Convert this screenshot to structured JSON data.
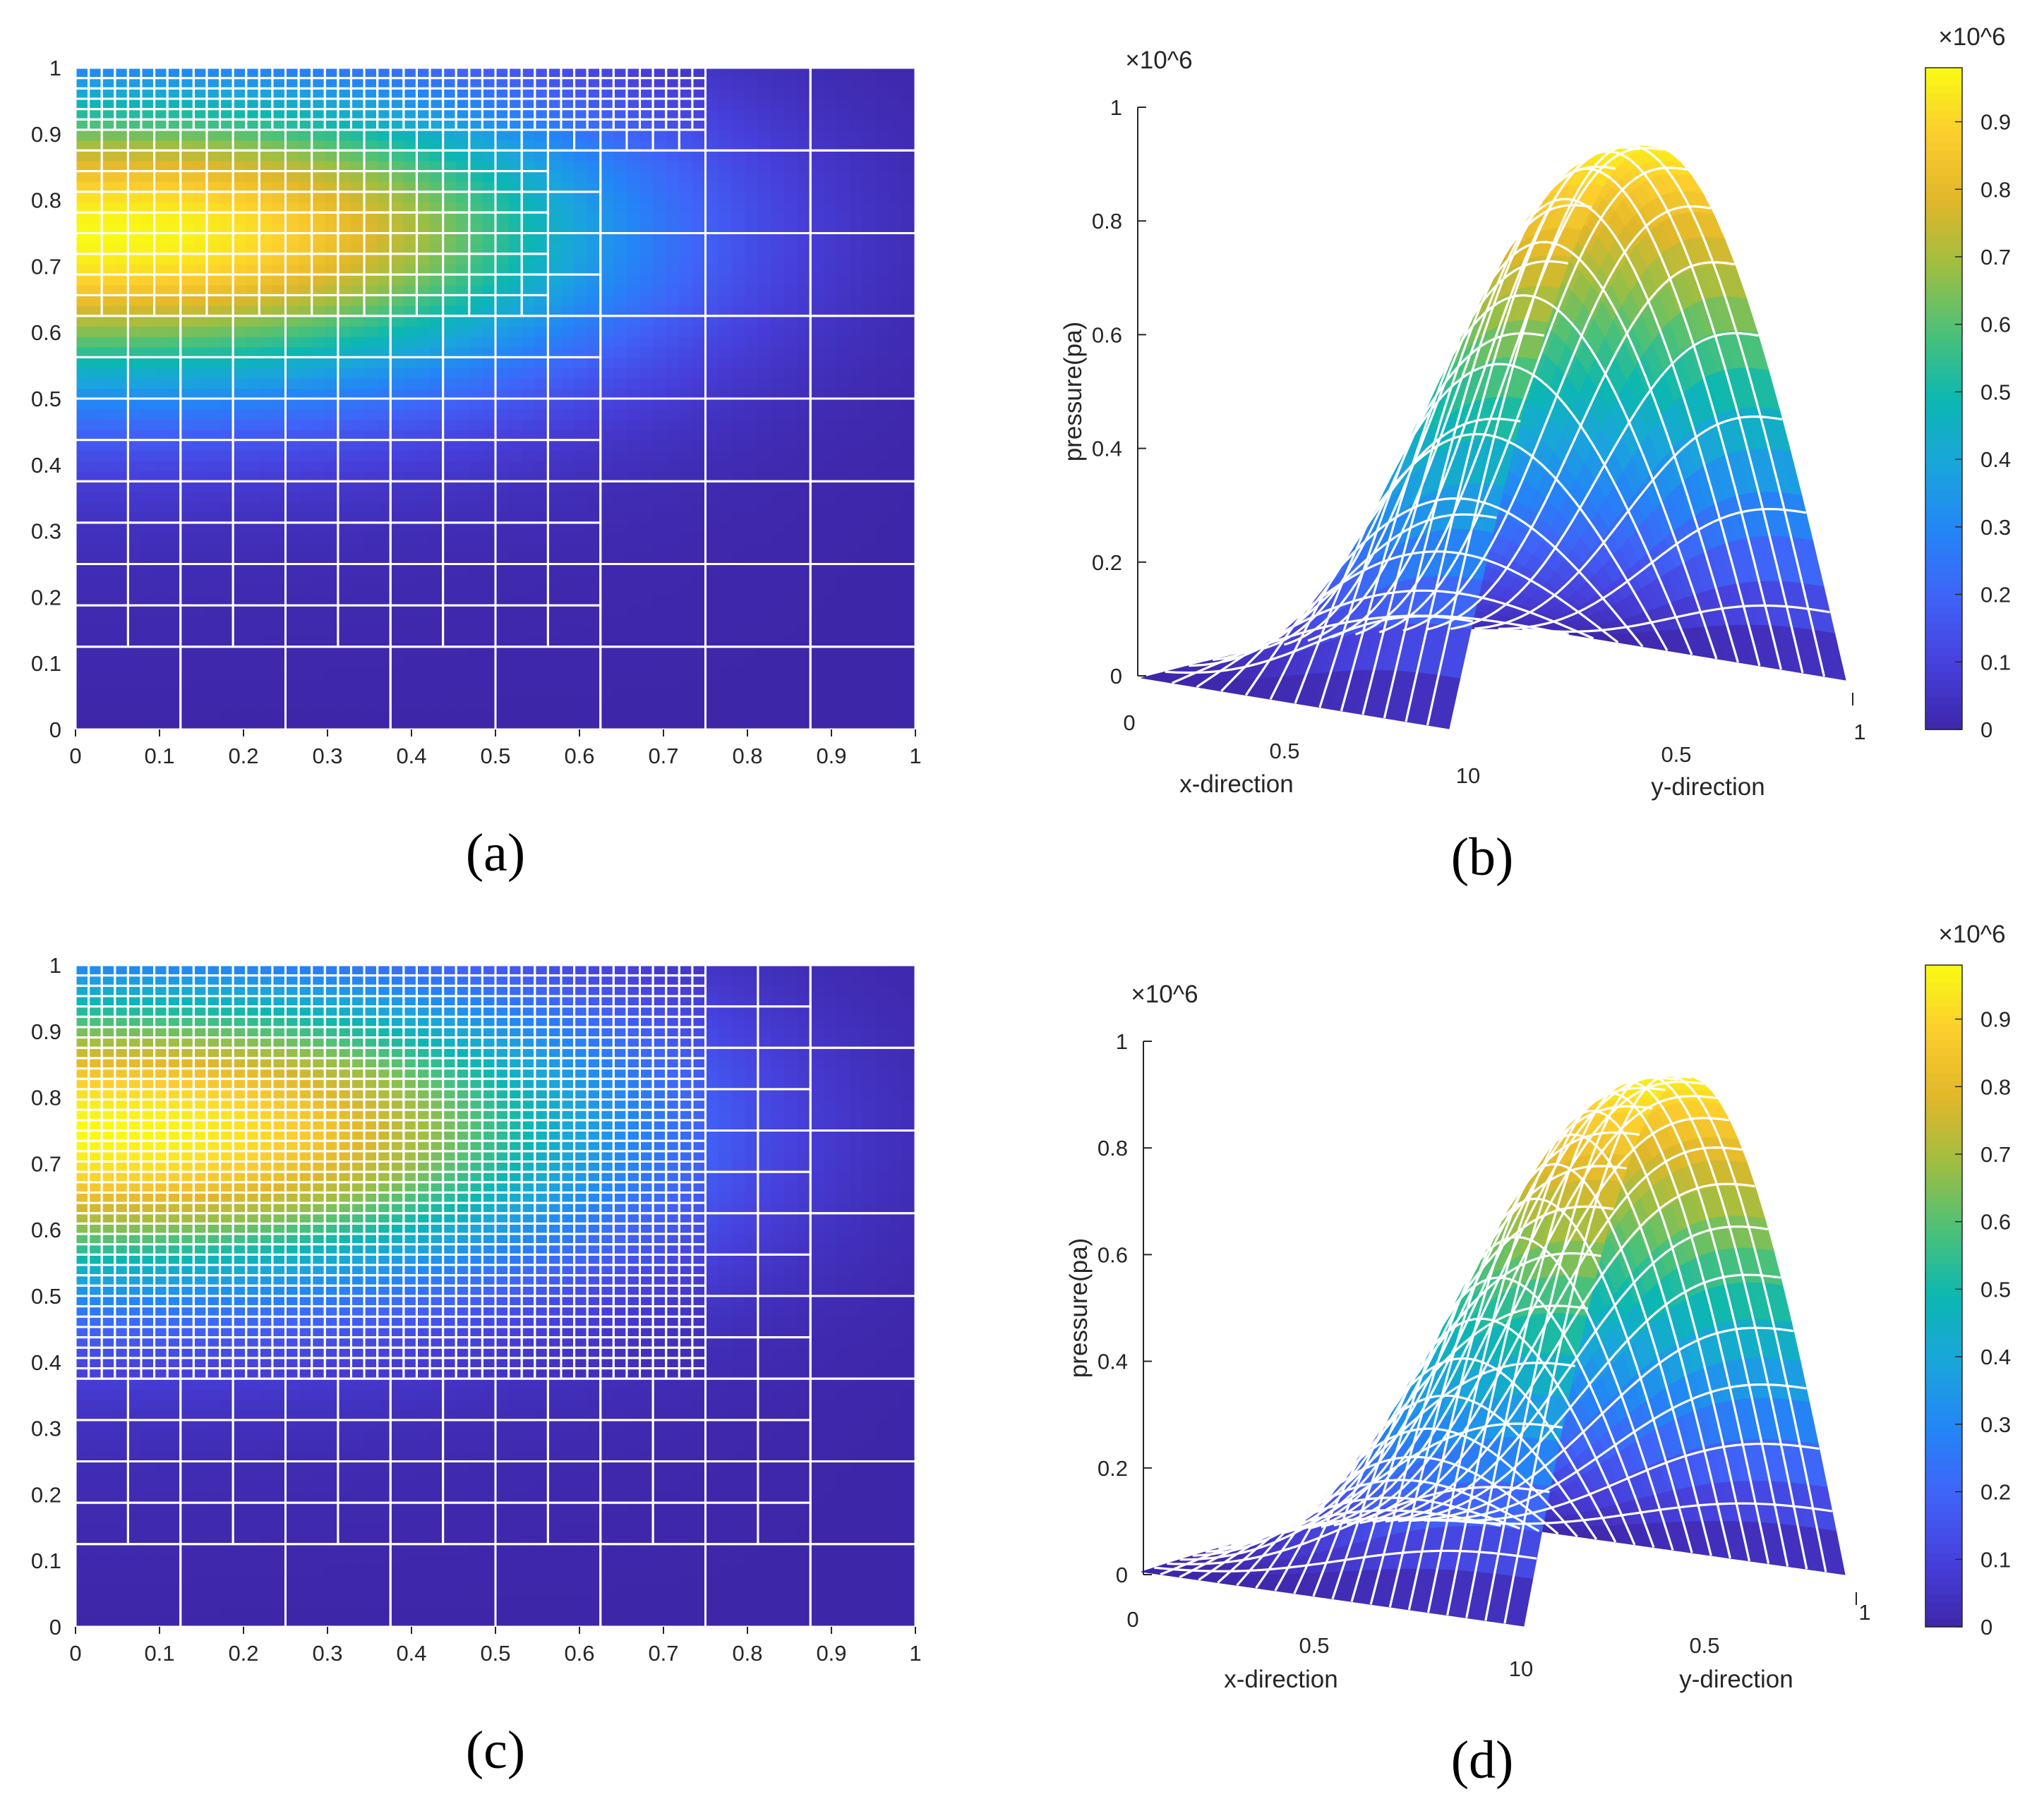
{
  "colors": {
    "background": "#ffffff",
    "mesh": "#ffffff",
    "axis": "#262626"
  },
  "colormap": "parula",
  "chart_data": [
    {
      "id": "a",
      "caption": "(a)",
      "type": "heatmap",
      "xlim": [
        0,
        1
      ],
      "ylim": [
        0,
        1
      ],
      "xticks": [
        "0",
        "0.1",
        "0.2",
        "0.3",
        "0.4",
        "0.5",
        "0.6",
        "0.7",
        "0.8",
        "0.9",
        "1"
      ],
      "yticks": [
        "0",
        "0.1",
        "0.2",
        "0.3",
        "0.4",
        "0.5",
        "0.6",
        "0.7",
        "0.8",
        "0.9",
        "1"
      ],
      "field": "pressure",
      "mesh_refinement": "quadtree, finest near top boundary and left region",
      "peak_value": 0.97
    },
    {
      "id": "b",
      "caption": "(b)",
      "type": "surface",
      "zlabel": "pressure(pa)",
      "xlabel": "x-direction",
      "ylabel": "y-direction",
      "z_multiplier": "×10^6",
      "zticks": [
        "0",
        "0.2",
        "0.4",
        "0.6",
        "0.8",
        "1"
      ],
      "xticks": [
        "0",
        "0.5",
        "1"
      ],
      "yticks": [
        "0",
        "0.5",
        "1"
      ],
      "corner_label": "10",
      "zlim": [
        0,
        1
      ]
    },
    {
      "id": "c",
      "caption": "(c)",
      "type": "heatmap",
      "xlim": [
        0,
        1
      ],
      "ylim": [
        0,
        1
      ],
      "xticks": [
        "0",
        "0.1",
        "0.2",
        "0.3",
        "0.4",
        "0.5",
        "0.6",
        "0.7",
        "0.8",
        "0.9",
        "1"
      ],
      "yticks": [
        "0",
        "0.1",
        "0.2",
        "0.3",
        "0.4",
        "0.5",
        "0.6",
        "0.7",
        "0.8",
        "0.9",
        "1"
      ],
      "field": "pressure",
      "mesh_refinement": "quadtree, further refined (finer cells in upper-left region)",
      "peak_value": 0.97
    },
    {
      "id": "d",
      "caption": "(d)",
      "type": "surface",
      "zlabel": "pressure(pa)",
      "xlabel": "x-direction",
      "ylabel": "y-direction",
      "z_multiplier": "×10^6",
      "zticks": [
        "0",
        "0.2",
        "0.4",
        "0.6",
        "0.8",
        "1"
      ],
      "xticks": [
        "0",
        "0.5",
        "1"
      ],
      "yticks": [
        "0",
        "0.5",
        "1"
      ],
      "corner_label": "10",
      "zlim": [
        0,
        1
      ]
    }
  ],
  "colorbars": [
    {
      "label": "×10^6",
      "ticks": [
        "0",
        "0.1",
        "0.2",
        "0.3",
        "0.4",
        "0.5",
        "0.6",
        "0.7",
        "0.8",
        "0.9"
      ],
      "range": [
        0,
        0.98
      ]
    },
    {
      "label": "×10^6",
      "ticks": [
        "0",
        "0.1",
        "0.2",
        "0.3",
        "0.4",
        "0.5",
        "0.6",
        "0.7",
        "0.8",
        "0.9"
      ],
      "range": [
        0,
        0.98
      ]
    }
  ]
}
